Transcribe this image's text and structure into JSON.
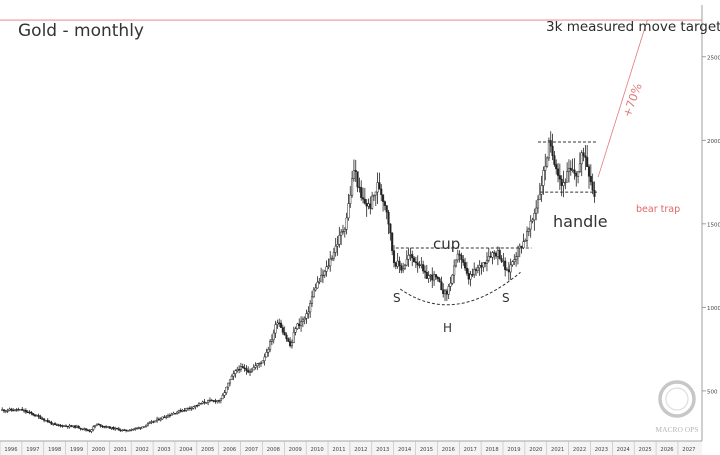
{
  "chart_data": {
    "type": "candlestick",
    "title": "Gold - monthly",
    "xlabel": "",
    "ylabel": "",
    "x_range": [
      1995.5,
      2027.6
    ],
    "ylim": [
      200,
      2810
    ],
    "y_ticks": [
      500,
      1000,
      1500,
      2000,
      2500
    ],
    "x_ticks": [
      "1996",
      "1997",
      "1998",
      "1999",
      "2000",
      "2001",
      "2002",
      "2003",
      "2004",
      "2005",
      "2006",
      "2007",
      "2008",
      "2009",
      "2010",
      "2011",
      "2012",
      "2013",
      "2014",
      "2015",
      "2016",
      "2017",
      "2018",
      "2019",
      "2020",
      "2021",
      "2022",
      "2023",
      "2024",
      "2025",
      "2026",
      "2027"
    ],
    "price_path": [
      [
        1995.6,
        385
      ],
      [
        1996.5,
        385
      ],
      [
        1997.0,
        360
      ],
      [
        1997.5,
        330
      ],
      [
        1998.0,
        295
      ],
      [
        1998.5,
        290
      ],
      [
        1999.0,
        285
      ],
      [
        1999.6,
        260
      ],
      [
        1999.9,
        300
      ],
      [
        2000.5,
        280
      ],
      [
        2001.2,
        262
      ],
      [
        2001.9,
        280
      ],
      [
        2002.5,
        315
      ],
      [
        2003.0,
        345
      ],
      [
        2003.6,
        375
      ],
      [
        2004.2,
        400
      ],
      [
        2004.9,
        435
      ],
      [
        2005.6,
        445
      ],
      [
        2006.0,
        560
      ],
      [
        2006.4,
        640
      ],
      [
        2006.9,
        620
      ],
      [
        2007.5,
        680
      ],
      [
        2007.9,
        800
      ],
      [
        2008.2,
        930
      ],
      [
        2008.8,
        760
      ],
      [
        2009.0,
        880
      ],
      [
        2009.5,
        940
      ],
      [
        2009.9,
        1120
      ],
      [
        2010.4,
        1220
      ],
      [
        2010.9,
        1380
      ],
      [
        2011.3,
        1500
      ],
      [
        2011.7,
        1840
      ],
      [
        2012.0,
        1650
      ],
      [
        2012.4,
        1600
      ],
      [
        2012.8,
        1740
      ],
      [
        2013.2,
        1580
      ],
      [
        2013.5,
        1280
      ],
      [
        2013.9,
        1230
      ],
      [
        2014.2,
        1310
      ],
      [
        2014.7,
        1260
      ],
      [
        2014.9,
        1190
      ],
      [
        2015.4,
        1180
      ],
      [
        2015.9,
        1070
      ],
      [
        2016.5,
        1330
      ],
      [
        2016.9,
        1170
      ],
      [
        2017.5,
        1250
      ],
      [
        2017.9,
        1320
      ],
      [
        2018.3,
        1330
      ],
      [
        2018.7,
        1200
      ],
      [
        2019.0,
        1300
      ],
      [
        2019.5,
        1410
      ],
      [
        2019.8,
        1500
      ],
      [
        2020.2,
        1700
      ],
      [
        2020.6,
        1970
      ],
      [
        2020.9,
        1870
      ],
      [
        2021.2,
        1730
      ],
      [
        2021.5,
        1810
      ],
      [
        2021.9,
        1800
      ],
      [
        2022.2,
        1940
      ],
      [
        2022.5,
        1780
      ],
      [
        2022.7,
        1660
      ]
    ],
    "annotations": {
      "target_label": "3k measured move target",
      "target_level": 2720,
      "percent_label": "+70%",
      "cup_label": "cup",
      "handle_label": "handle",
      "left_shoulder": "S",
      "head": "H",
      "right_shoulder": "S",
      "bear_trap": "bear trap",
      "cup_rim_level": 1355,
      "handle_top_level": 1990,
      "handle_bottom_level": 1690
    },
    "grid": false,
    "legend": "none",
    "colors": {
      "candles": "#222222",
      "pattern_lines": "#333333",
      "target_line": "#e07a7a",
      "target_text": "#2b2b2b",
      "bear_trap": "#e06666"
    }
  },
  "watermark": {
    "brand": "MACRO OPS"
  }
}
